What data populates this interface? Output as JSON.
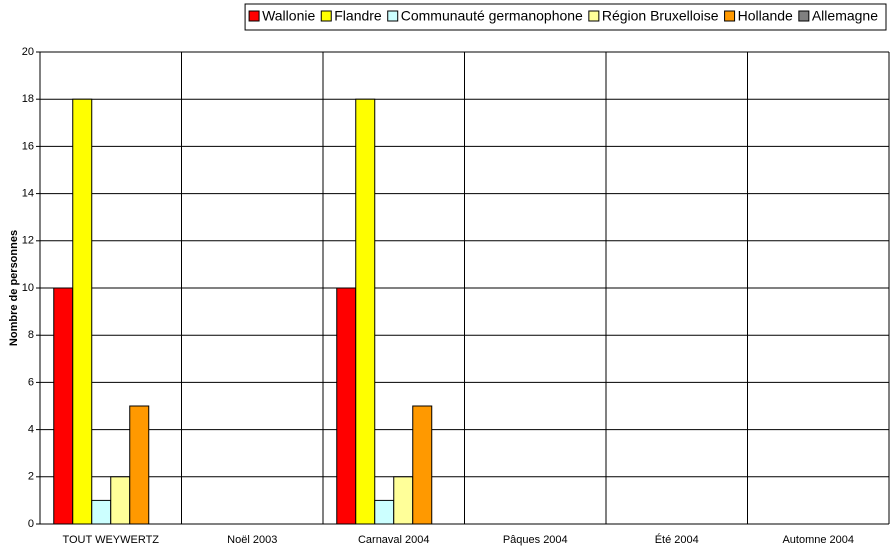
{
  "chart_data": {
    "type": "bar",
    "y_axis_label": "Nombre de personnes",
    "categories": [
      "TOUT WEYWERTZ",
      "Noël 2003",
      "Carnaval 2004",
      "Pâques 2004",
      "Été 2004",
      "Automne 2004"
    ],
    "series": [
      {
        "name": "Wallonie",
        "color": "#ff0000",
        "values": [
          10,
          0,
          10,
          0,
          0,
          0
        ]
      },
      {
        "name": "Flandre",
        "color": "#ffff00",
        "values": [
          18,
          0,
          18,
          0,
          0,
          0
        ]
      },
      {
        "name": "Communauté germanophone",
        "color": "#ccffff",
        "values": [
          1,
          0,
          1,
          0,
          0,
          0
        ]
      },
      {
        "name": "Région Bruxelloise",
        "color": "#ffff99",
        "values": [
          2,
          0,
          2,
          0,
          0,
          0
        ]
      },
      {
        "name": "Hollande",
        "color": "#ff9900",
        "values": [
          5,
          0,
          5,
          0,
          0,
          0
        ]
      },
      {
        "name": "Allemagne",
        "color": "#808080",
        "values": [
          0,
          0,
          0,
          0,
          0,
          0
        ]
      }
    ],
    "ylim": [
      0,
      20
    ],
    "yticks": [
      0,
      2,
      4,
      6,
      8,
      10,
      12,
      14,
      16,
      18,
      20
    ],
    "grid": true,
    "legend": "top"
  }
}
